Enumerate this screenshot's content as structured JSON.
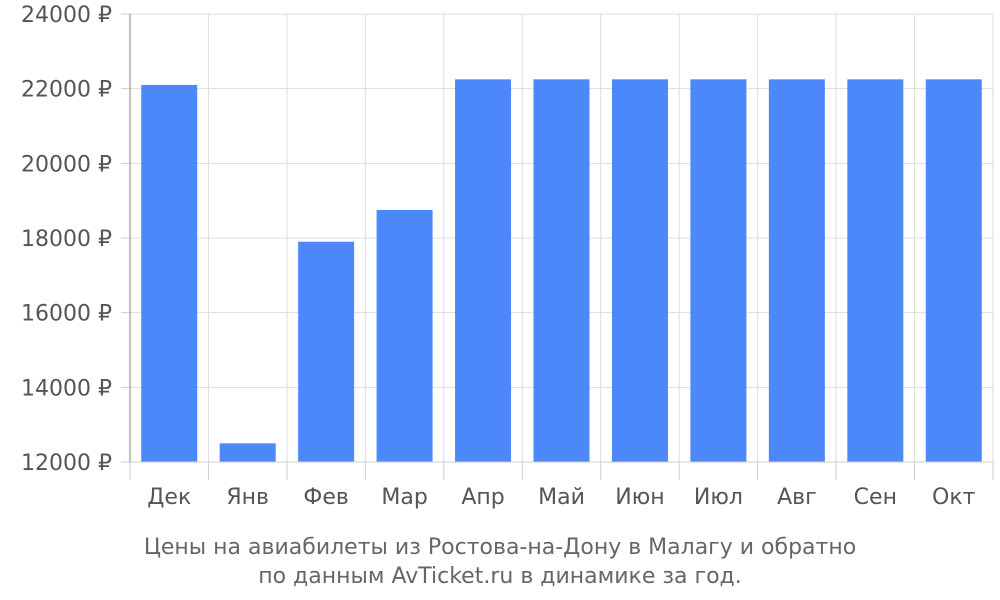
{
  "chart_data": {
    "type": "bar",
    "categories": [
      "Дек",
      "Янв",
      "Фев",
      "Мар",
      "Апр",
      "Май",
      "Июн",
      "Июл",
      "Авг",
      "Сен",
      "Окт"
    ],
    "values": [
      22100,
      12500,
      17900,
      18750,
      22250,
      22250,
      22250,
      22250,
      22250,
      22250,
      22250
    ],
    "title": "",
    "xlabel": "",
    "ylabel": "",
    "ylim": [
      12000,
      24000
    ],
    "y_ticks": [
      12000,
      14000,
      16000,
      18000,
      20000,
      22000,
      24000
    ],
    "y_tick_labels": [
      "12000 ₽",
      "14000 ₽",
      "16000 ₽",
      "18000 ₽",
      "20000 ₽",
      "22000 ₽",
      "24000 ₽"
    ],
    "grid": true,
    "bar_color": "#4d88fb"
  },
  "caption": {
    "line1": "Цены на авиабилеты из Ростова-на-Дону в Малагу и обратно",
    "line2": "по данным AvTicket.ru в динамике за год."
  }
}
